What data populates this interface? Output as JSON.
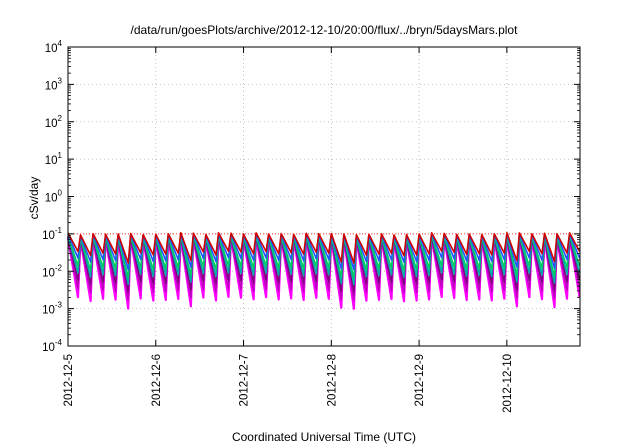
{
  "chart_data": {
    "type": "line",
    "title": "/data/run/goesPlots/archive/2012-12-10/20:00/flux/../bryn/5daysMars.plot",
    "xlabel": "Coordinated Universal Time (UTC)",
    "ylabel": "cSv/day",
    "yscale": "log",
    "ylim": [
      0.0001,
      10000
    ],
    "y_ticks": [
      {
        "base": "10",
        "exp": "-4"
      },
      {
        "base": "10",
        "exp": "-3"
      },
      {
        "base": "10",
        "exp": "-2"
      },
      {
        "base": "10",
        "exp": "-1"
      },
      {
        "base": "10",
        "exp": "0"
      },
      {
        "base": "10",
        "exp": "1"
      },
      {
        "base": "10",
        "exp": "2"
      },
      {
        "base": "10",
        "exp": "3"
      },
      {
        "base": "10",
        "exp": "4"
      }
    ],
    "x_ticks": [
      "2012-12-5",
      "2012-12-6",
      "2012-12-7",
      "2012-12-8",
      "2012-12-9",
      "2012-12-10"
    ],
    "x_start": "2012-12-5",
    "x_end": "2012-12-10 20:00",
    "grid": true,
    "threshold_line": {
      "value": 0.1,
      "color": "#ff3333",
      "style": "dotted"
    },
    "series_style": "sawtooth, ~7 cycles per day",
    "series": [
      {
        "color": "#ff00ff",
        "peak": 0.075,
        "trough": 0.0018
      },
      {
        "color": "#c000c0",
        "peak": 0.07,
        "trough": 0.003
      },
      {
        "color": "#800080",
        "peak": 0.08,
        "trough": 0.005
      },
      {
        "color": "#00aaaa",
        "peak": 0.085,
        "trough": 0.008
      },
      {
        "color": "#00cc66",
        "peak": 0.09,
        "trough": 0.012
      },
      {
        "color": "#2255ff",
        "peak": 0.095,
        "trough": 0.02
      },
      {
        "color": "#cc0000",
        "peak": 0.1,
        "trough": 0.03
      }
    ]
  }
}
